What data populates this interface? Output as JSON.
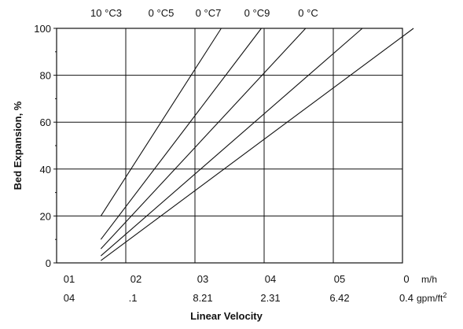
{
  "chart_data": {
    "type": "line",
    "ylabel": "Bed Expansion, %",
    "xlabel": "Linear Velocity",
    "ylim": [
      0,
      100
    ],
    "y_ticks": [
      "0",
      "20",
      "40",
      "60",
      "80",
      "100"
    ],
    "x_ticks_primary": [
      "01",
      "02",
      "03",
      "04",
      "05",
      "0"
    ],
    "x_ticks_secondary": [
      "04",
      ".1",
      "8.21",
      "2.31",
      "6.42",
      "0.4"
    ],
    "x_unit_primary": "m/h",
    "x_unit_secondary_base": "gpm/ft",
    "x_unit_secondary_sup": "2",
    "x_units": "m/h",
    "xlim": [
      0,
      25
    ],
    "grid": true,
    "series": [
      {
        "name": "10 °C3",
        "x": [
          3.2,
          11.9
        ],
        "y": [
          20,
          100
        ]
      },
      {
        "name": "0 °C5",
        "x": [
          3.2,
          14.8
        ],
        "y": [
          10,
          100
        ]
      },
      {
        "name": "0 °C7",
        "x": [
          3.2,
          18.0
        ],
        "y": [
          6,
          100
        ]
      },
      {
        "name": "0 °C9",
        "x": [
          3.2,
          22.1
        ],
        "y": [
          3,
          100
        ]
      },
      {
        "name": "0 °C",
        "x": [
          3.2,
          25.8
        ],
        "y": [
          1,
          100
        ]
      }
    ]
  }
}
